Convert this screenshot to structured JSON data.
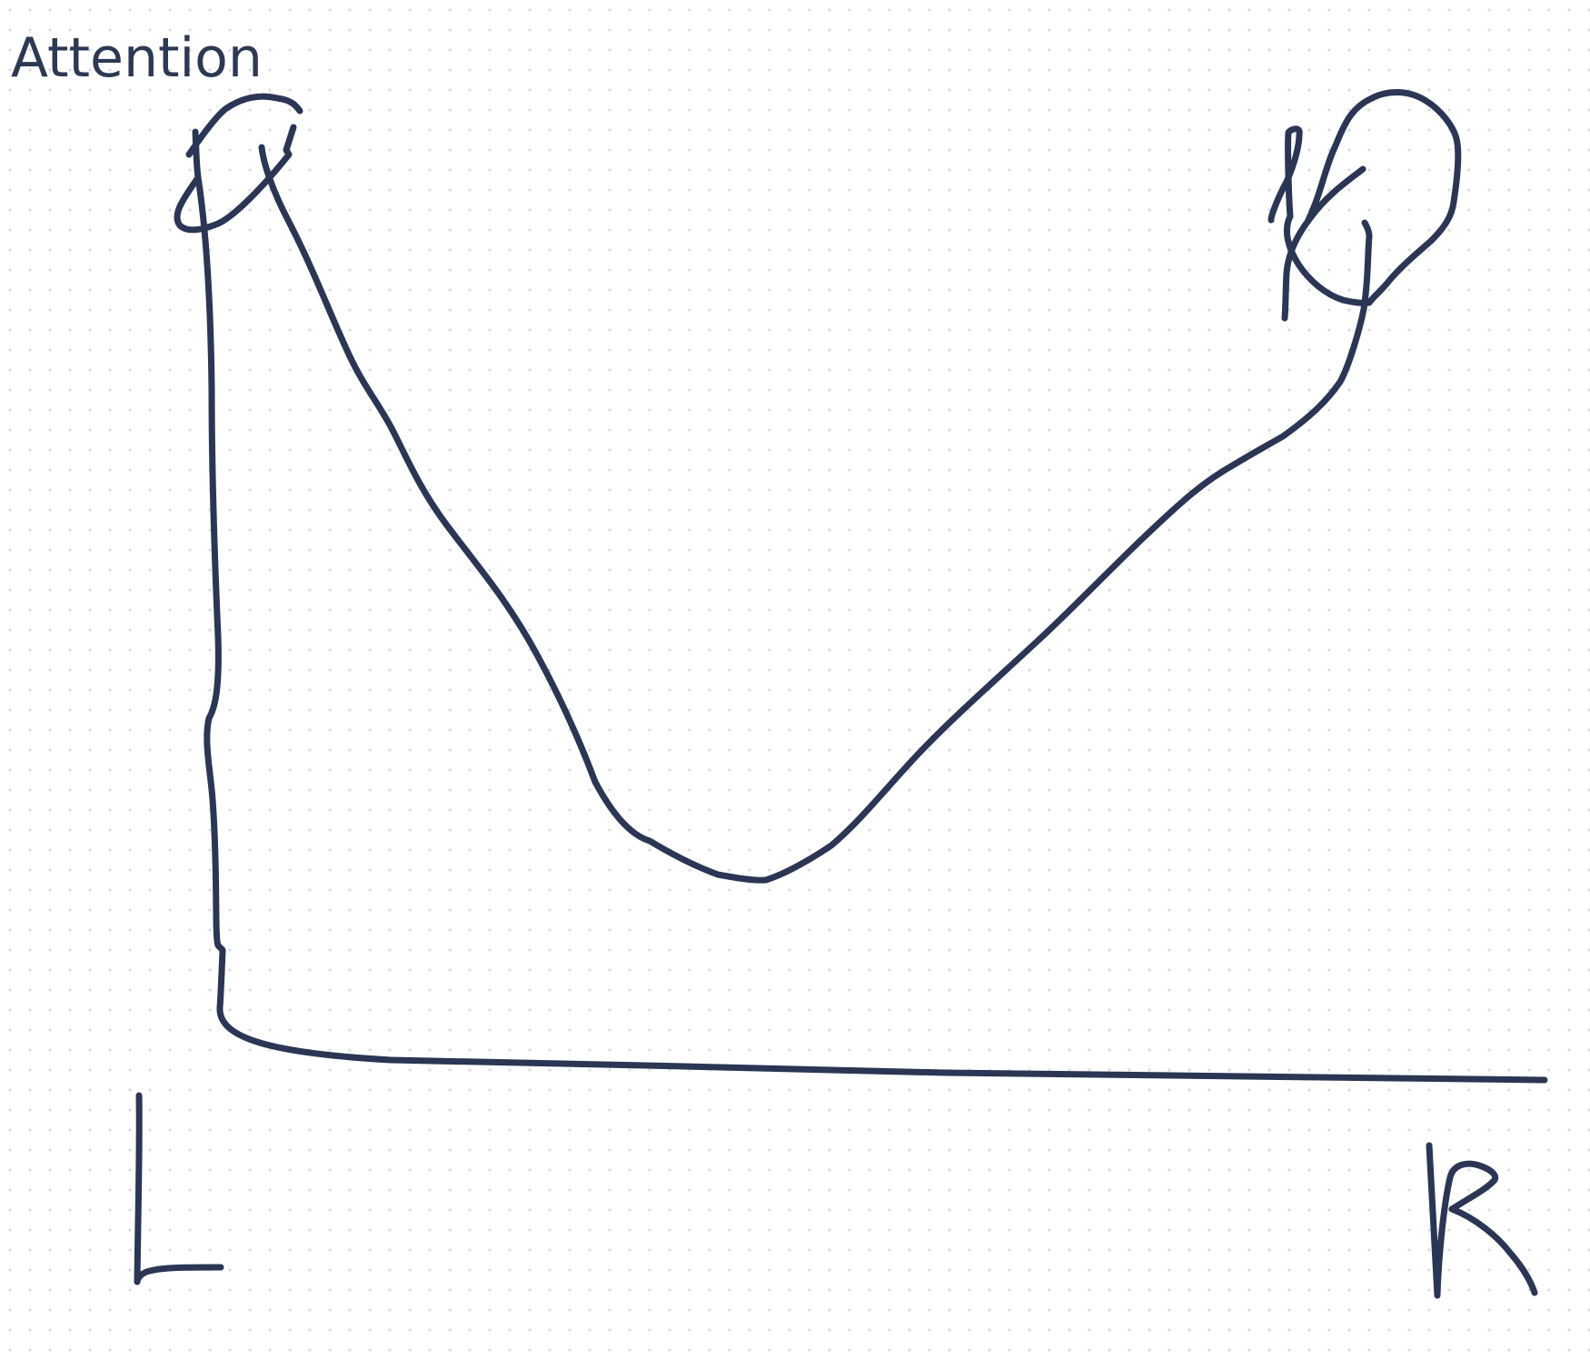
{
  "canvas": {
    "background": "#ffffff",
    "dot_color": "#d9dce2",
    "ink_color": "#2b3654"
  },
  "labels": {
    "title": "Attention"
  }
}
